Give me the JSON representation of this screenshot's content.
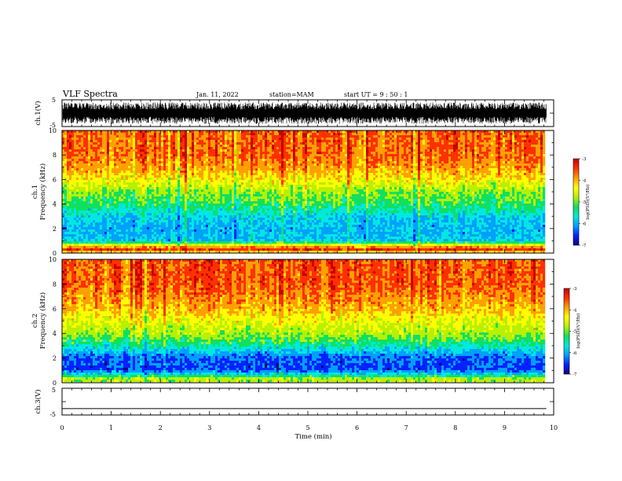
{
  "header": {
    "title": "VLF Spectra",
    "date": "Jan. 11, 2022",
    "station": "station=MAM",
    "start": "start UT =  9 : 50 : 1"
  },
  "colors": {
    "colormap": [
      "#1a007a",
      "#0022ff",
      "#00a0ff",
      "#00e8e0",
      "#10e060",
      "#b8f000",
      "#ffff00",
      "#ffa000",
      "#ff3000",
      "#c80000"
    ],
    "waveform": "#000000",
    "axis": "#000000"
  },
  "chart_data": [
    {
      "type": "line",
      "panel": "ch1-waveform",
      "ylabel": "ch.1(V)",
      "ylim": [
        -5,
        5
      ],
      "yticks": [
        "5",
        "-5"
      ],
      "xlim": [
        0,
        10
      ],
      "description_values": "noise waveform spanning roughly -4 to +4 V",
      "amplitude_range": [
        -4,
        4
      ]
    },
    {
      "type": "heatmap",
      "panel": "ch1-spectrogram",
      "ylabel": "ch.1\nFrequency (kHz)",
      "ylim": [
        0,
        10
      ],
      "yticks": [
        "0",
        "2",
        "4",
        "6",
        "8",
        "10"
      ],
      "xlim": [
        0,
        9.85
      ],
      "colorbar": {
        "label": "log(PSD)(V²/Hz)",
        "range": [
          -7,
          -3
        ],
        "ticks": [
          "-3",
          "-4",
          "-5",
          "-6",
          "-7"
        ]
      },
      "profile_khz": [
        0,
        0.3,
        0.6,
        1,
        2,
        3,
        4,
        5,
        6,
        7,
        8,
        9,
        10
      ],
      "profile_logpsd": [
        -4.6,
        -3.5,
        -4.3,
        -5.8,
        -5.9,
        -5.7,
        -5.2,
        -4.9,
        -4.4,
        -4.0,
        -3.8,
        -3.8,
        -3.8
      ]
    },
    {
      "type": "heatmap",
      "panel": "ch2-spectrogram",
      "ylabel": "ch.2\nFrequency (kHz)",
      "ylim": [
        0,
        10
      ],
      "yticks": [
        "0",
        "2",
        "4",
        "6",
        "8",
        "10"
      ],
      "xlim": [
        0,
        9.85
      ],
      "colorbar": {
        "label": "log(PSD)(V²/Hz)",
        "range": [
          -7,
          -3
        ],
        "ticks": [
          "-3",
          "-4",
          "-5",
          "-6",
          "-7"
        ]
      },
      "profile_khz": [
        0,
        0.3,
        0.6,
        1,
        2,
        3,
        4,
        5,
        6,
        7,
        8,
        9,
        10
      ],
      "profile_logpsd": [
        -4.8,
        -4.8,
        -5.6,
        -6.3,
        -6.2,
        -5.4,
        -4.8,
        -4.5,
        -4.1,
        -3.9,
        -3.7,
        -3.7,
        -3.7
      ]
    },
    {
      "type": "line",
      "panel": "ch3-waveform",
      "ylabel": "ch.3(V)",
      "ylim": [
        -5,
        5
      ],
      "yticks": [
        "5",
        "-5"
      ],
      "xlim": [
        0,
        9.85
      ],
      "constant_value": -2.6
    }
  ],
  "xaxis": {
    "label": "Time (min)",
    "ticks": [
      "0",
      "1",
      "2",
      "3",
      "4",
      "5",
      "6",
      "7",
      "8",
      "9",
      "10"
    ],
    "range": [
      0,
      10
    ]
  }
}
